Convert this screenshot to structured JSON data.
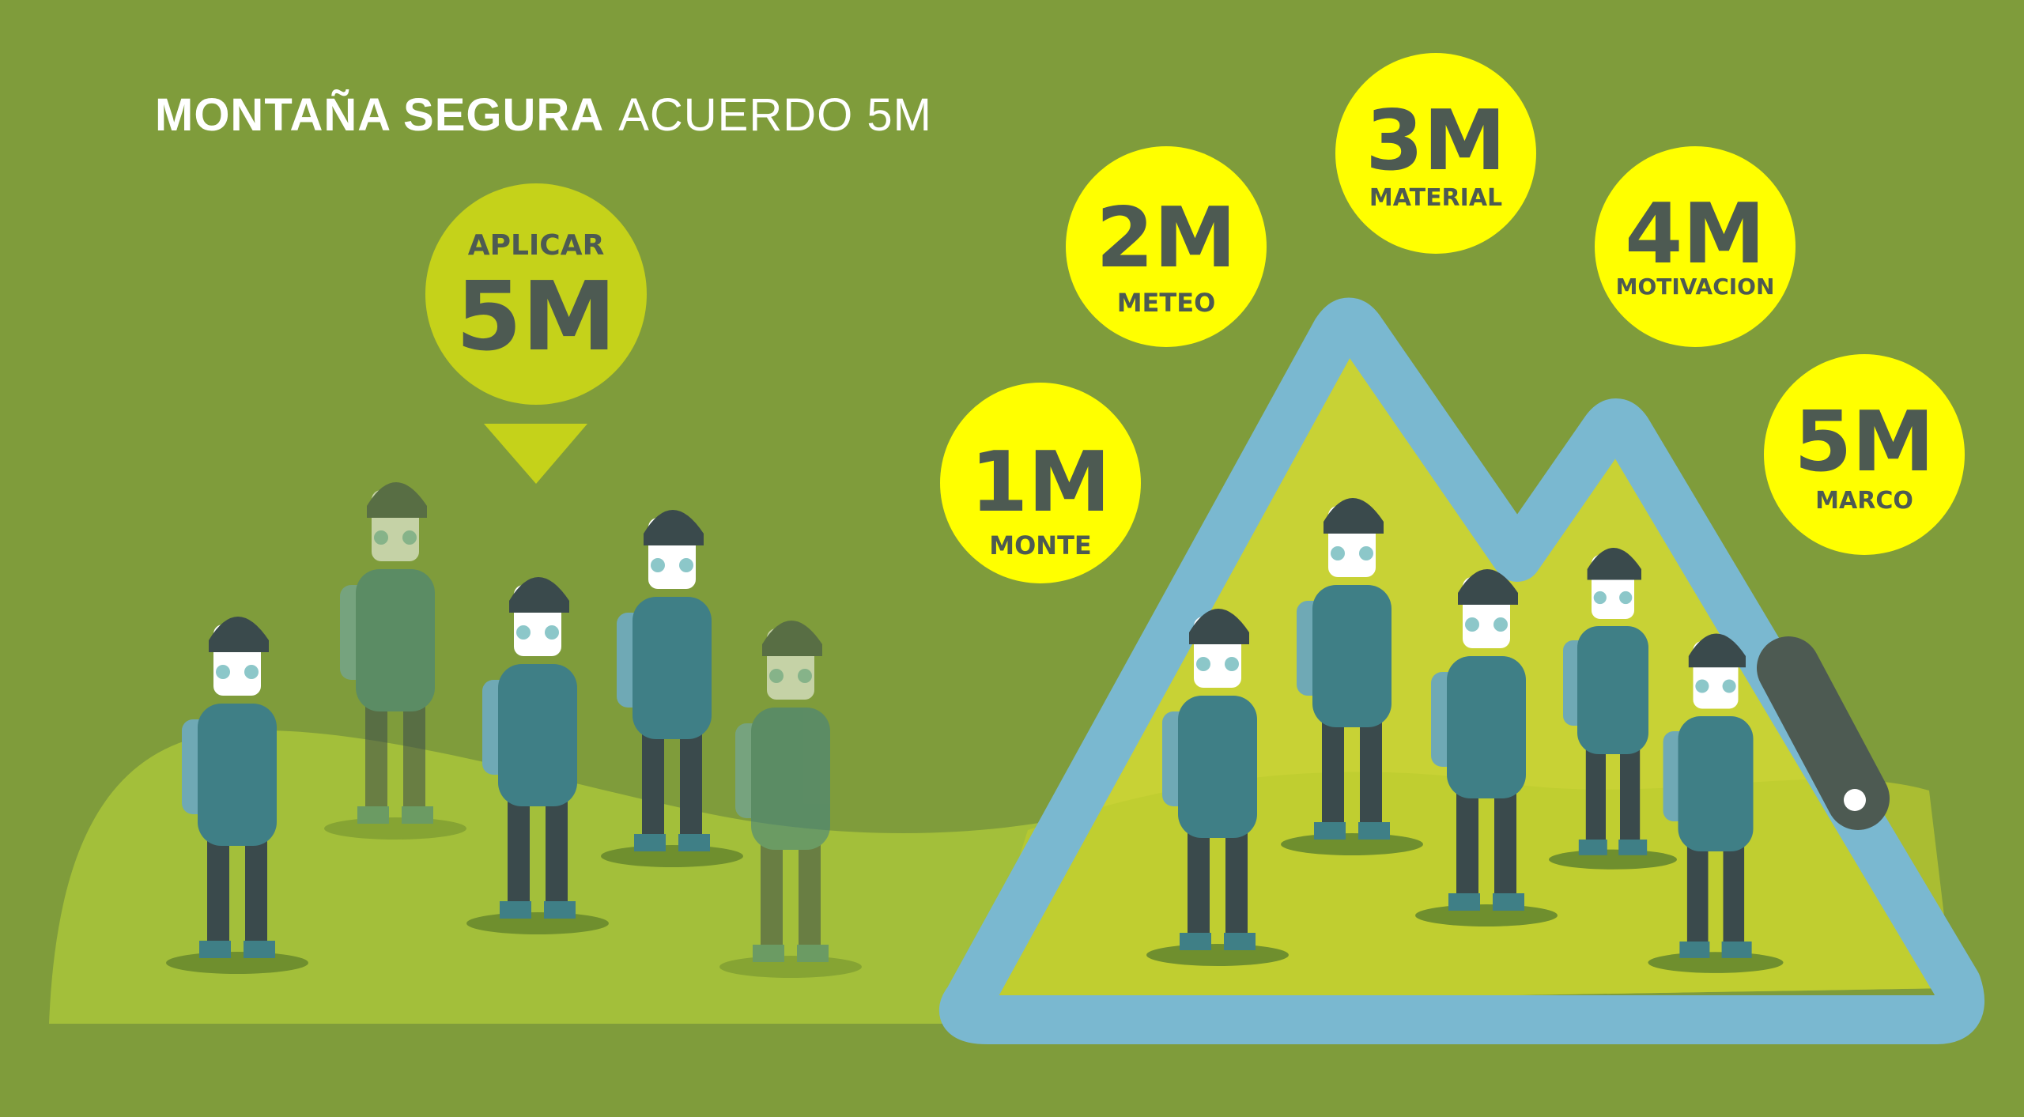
{
  "header": {
    "title_bold": "MONTAÑA SEGURA",
    "title_light": "ACUERDO 5M"
  },
  "apply_badge": {
    "top": "APLICAR",
    "main": "5M"
  },
  "badges": [
    {
      "main": "1M",
      "label": "MONTE"
    },
    {
      "main": "2M",
      "label": "METEO"
    },
    {
      "main": "3M",
      "label": "MATERIAL"
    },
    {
      "main": "4M",
      "label": "MOTIVACION"
    },
    {
      "main": "5M",
      "label": "MARCO"
    }
  ],
  "colors": {
    "background": "#7f9c3b",
    "hill": "#a3bf3a",
    "mountain_fill": "#c8d235",
    "mountain_outline": "#7ab8d0",
    "badge": "#ffff00",
    "apply_badge": "#c5d21a",
    "badge_text": "#4d5a52",
    "hiker_teal": "#3f7f86",
    "hiker_dark": "#3a4a4c"
  }
}
